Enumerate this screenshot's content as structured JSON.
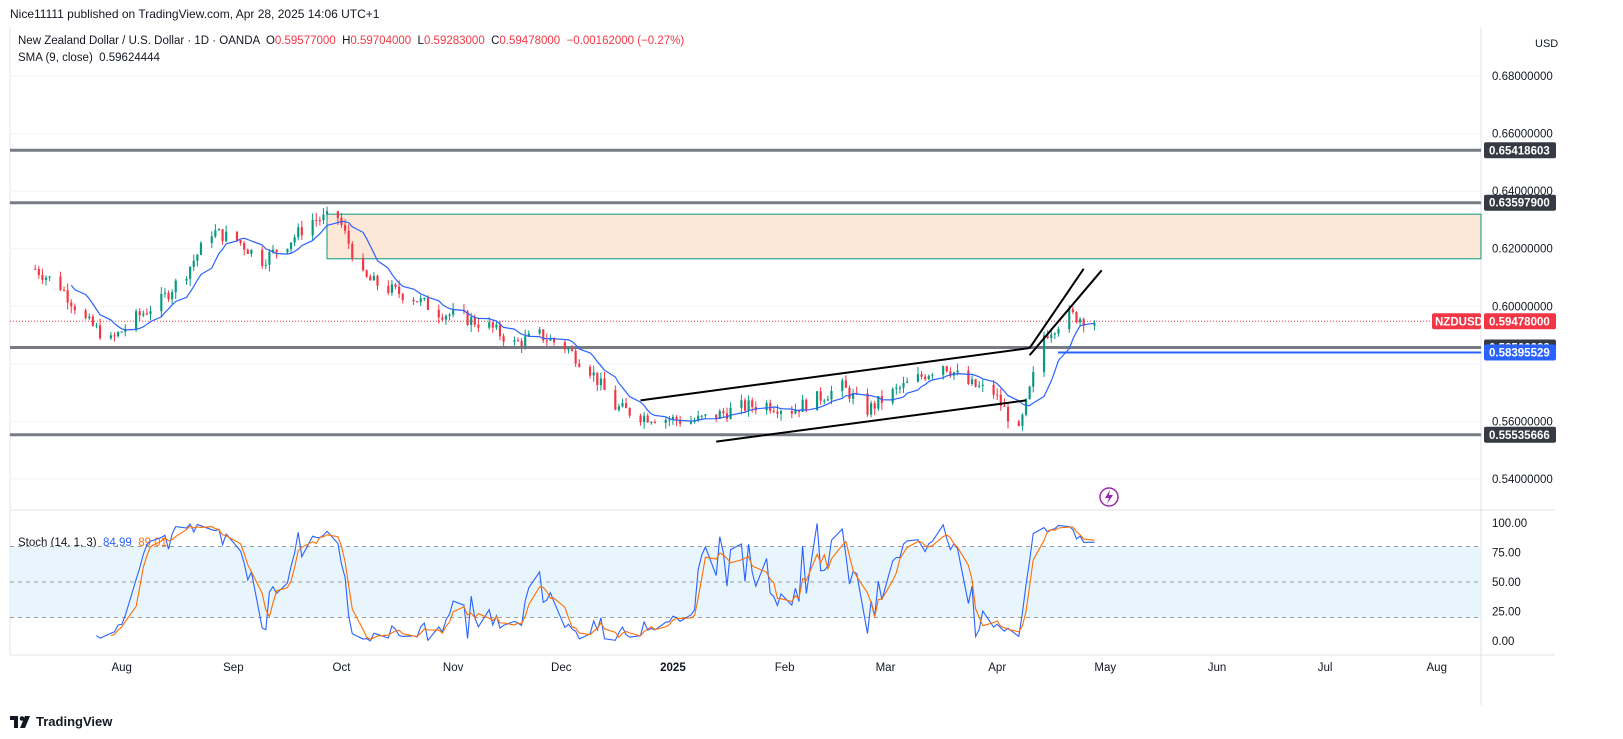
{
  "header": {
    "published": "Nice11111 published on TradingView.com, Apr 28, 2025 14:06 UTC+1"
  },
  "legend": {
    "symbol": "New Zealand Dollar / U.S. Dollar · 1D · OANDA",
    "open_label": "O",
    "open": "0.59577000",
    "high_label": "H",
    "high": "0.59704000",
    "low_label": "L",
    "low": "0.59283000",
    "close_label": "C",
    "close": "0.59478000",
    "change": "−0.00162000 (−0.27%)",
    "sma_label": "SMA (9, close)",
    "sma_value": "0.59624444"
  },
  "stoch_legend": {
    "label": "Stoch (14, 1, 3)",
    "k": "84.99",
    "d": "89.01"
  },
  "currency": "USD",
  "footer": {
    "brand": "TradingView"
  },
  "colors": {
    "up": "#089981",
    "down": "#f23645",
    "sma": "#2962ff",
    "stoch_k": "#2962ff",
    "stoch_d": "#ff6d00",
    "zone": "#fde8d8",
    "zone_border": "#089981",
    "sr_line": "#787b86"
  },
  "chart_data": [
    {
      "type": "candlestick",
      "title": "New Zealand Dollar / U.S. Dollar · 1D · OANDA",
      "ylim": [
        0.532,
        0.69
      ],
      "y_ticks": [
        "0.68000000",
        "0.66000000",
        "0.64000000",
        "0.62000000",
        "0.60000000",
        "0.56000000",
        "0.54000000"
      ],
      "x_ticks": [
        "Aug",
        "Sep",
        "Oct",
        "Nov",
        "Dec",
        "2025",
        "Feb",
        "Mar",
        "Apr",
        "May",
        "Jun",
        "Jul",
        "Aug"
      ],
      "horizontal_levels": [
        0.65418603,
        0.635979,
        0.58566288,
        0.55535666
      ],
      "level_labels": [
        "0.65418603",
        "0.63597900",
        "0.58566288",
        "0.55535666"
      ],
      "blue_level": {
        "value": 0.58395529,
        "label": "0.58395529"
      },
      "last_price": {
        "value": 0.59478,
        "label": "0.59478000",
        "symbol": "NZDUSD"
      },
      "supply_zone": [
        0.6165,
        0.632
      ],
      "sma_last": 0.59624444,
      "close_path": [
        [
          "2024-07-08",
          0.613
        ],
        [
          "2024-07-15",
          0.607
        ],
        [
          "2024-07-22",
          0.595
        ],
        [
          "2024-07-29",
          0.588
        ],
        [
          "2024-08-05",
          0.596
        ],
        [
          "2024-08-12",
          0.602
        ],
        [
          "2024-08-19",
          0.612
        ],
        [
          "2024-08-26",
          0.626
        ],
        [
          "2024-09-02",
          0.623
        ],
        [
          "2024-09-09",
          0.616
        ],
        [
          "2024-09-16",
          0.622
        ],
        [
          "2024-09-23",
          0.63
        ],
        [
          "2024-09-30",
          0.631
        ],
        [
          "2024-10-07",
          0.61
        ],
        [
          "2024-10-14",
          0.606
        ],
        [
          "2024-10-21",
          0.603
        ],
        [
          "2024-10-28",
          0.598
        ],
        [
          "2024-11-04",
          0.596
        ],
        [
          "2024-11-11",
          0.593
        ],
        [
          "2024-11-18",
          0.587
        ],
        [
          "2024-11-25",
          0.59
        ],
        [
          "2024-12-02",
          0.586
        ],
        [
          "2024-12-09",
          0.578
        ],
        [
          "2024-12-16",
          0.565
        ],
        [
          "2024-12-23",
          0.562
        ],
        [
          "2024-12-30",
          0.561
        ],
        [
          "2025-01-06",
          0.56
        ],
        [
          "2025-01-13",
          0.562
        ],
        [
          "2025-01-20",
          0.565
        ],
        [
          "2025-01-27",
          0.566
        ],
        [
          "2025-02-03",
          0.564
        ],
        [
          "2025-02-10",
          0.568
        ],
        [
          "2025-02-17",
          0.572
        ],
        [
          "2025-02-24",
          0.564
        ],
        [
          "2025-03-03",
          0.57
        ],
        [
          "2025-03-10",
          0.575
        ],
        [
          "2025-03-17",
          0.58
        ],
        [
          "2025-03-24",
          0.573
        ],
        [
          "2025-03-31",
          0.57
        ],
        [
          "2025-04-07",
          0.556
        ],
        [
          "2025-04-14",
          0.59
        ],
        [
          "2025-04-21",
          0.597
        ],
        [
          "2025-04-28",
          0.5948
        ]
      ]
    },
    {
      "type": "line",
      "title": "Stoch (14, 1, 3)",
      "ylim": [
        -8,
        108
      ],
      "y_ticks": [
        "100.00",
        "75.00",
        "50.00",
        "25.00",
        "0.00"
      ],
      "band": [
        20,
        80
      ],
      "k_last": 84.99,
      "d_last": 89.01
    }
  ]
}
